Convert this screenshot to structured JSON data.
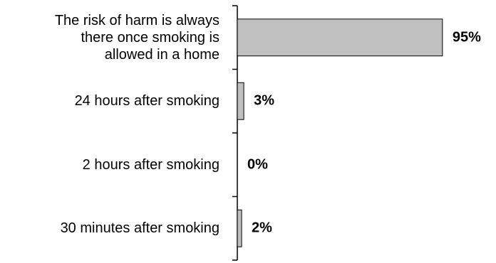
{
  "chart_data": {
    "type": "bar",
    "orientation": "horizontal",
    "categories": [
      "The risk of harm is always\nthere once smoking is\nallowed in a home",
      "24 hours after smoking",
      "2 hours after smoking",
      "30 minutes after smoking"
    ],
    "values": [
      95,
      3,
      0,
      2
    ],
    "value_labels": [
      "95%",
      "3%",
      "0%",
      "2%"
    ],
    "color": "#c0c0c0",
    "xlim": [
      0,
      100
    ]
  }
}
